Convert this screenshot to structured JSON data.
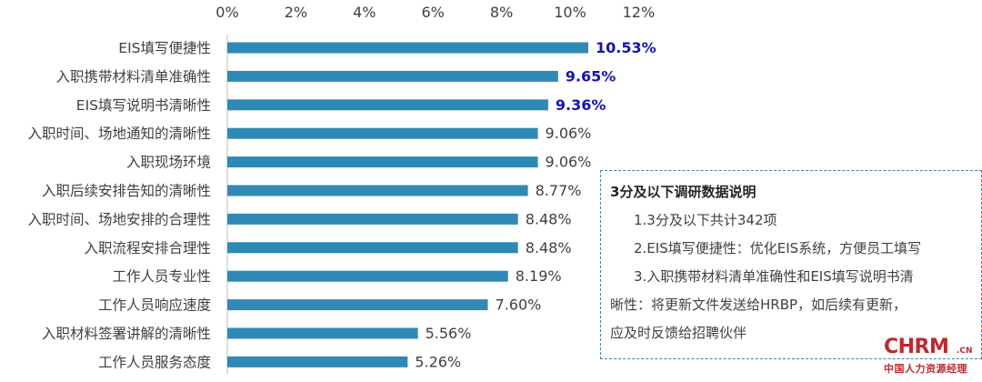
{
  "chart_data": {
    "type": "bar",
    "orientation": "horizontal",
    "categories": [
      "EIS填写便捷性",
      "入职携带材料清单准确性",
      "EIS填写说明书清晰性",
      "入职时间、场地通知的清晰性",
      "入职现场环境",
      "入职后续安排告知的清晰性",
      "入职时间、场地安排的合理性",
      "入职流程安排合理性",
      "工作人员专业性",
      "工作人员响应速度",
      "入职材料签署讲解的清晰性",
      "工作人员服务态度"
    ],
    "values": [
      10.53,
      9.65,
      9.36,
      9.06,
      9.06,
      8.77,
      8.48,
      8.48,
      8.19,
      7.6,
      5.56,
      5.26
    ],
    "value_labels": [
      "10.53%",
      "9.65%",
      "9.36%",
      "9.06%",
      "9.06%",
      "8.77%",
      "8.48%",
      "8.48%",
      "8.19%",
      "7.60%",
      "5.56%",
      "5.26%"
    ],
    "highlighted_labels": [
      0,
      1,
      2
    ],
    "xlim": [
      0,
      12
    ],
    "x_ticks": [
      "0%",
      "2%",
      "4%",
      "6%",
      "8%",
      "10%",
      "12%"
    ],
    "axis_position": "top",
    "grid": false,
    "bar_color": "#2e8ab5",
    "label_color": "#404040",
    "highlight_color": "#1414b4"
  },
  "note": {
    "title": "3分及以下调研数据说明",
    "lines": [
      "1.3分及以下共计342项",
      "2.EIS填写便捷性：优化EIS系统，方便员工填写",
      "3.入职携带材料清单准确性和EIS填写说明书清"
    ],
    "continuation": [
      "晰性：将更新文件发送给HRBP，如后续有更新，",
      "应及时反馈给招聘伙伴"
    ]
  },
  "logo": {
    "main": "CHRM",
    "suffix": ".CN",
    "sub": "中国人力资源经理"
  }
}
